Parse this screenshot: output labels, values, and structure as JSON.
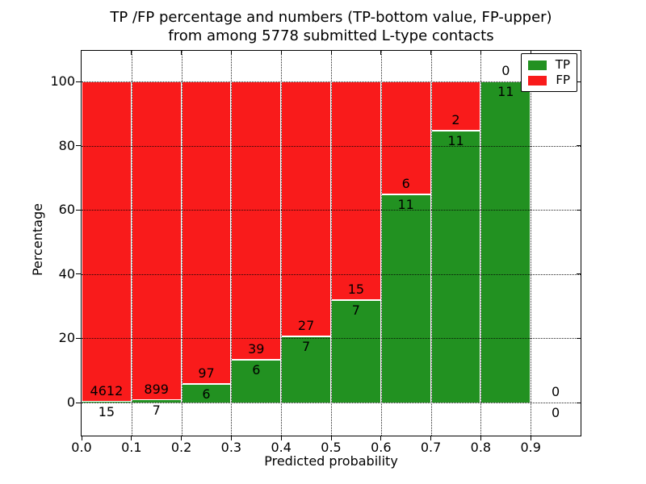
{
  "figure": {
    "title_line1": "TP /FP percentage and numbers (TP-bottom value, FP-upper)",
    "title_line2": "from among 5778 submitted L-type contacts",
    "background": "#ffffff"
  },
  "axes": {
    "xlabel": "Predicted probability",
    "ylabel": "Percentage",
    "x_tick_labels": [
      "0.0",
      "0.1",
      "0.2",
      "0.3",
      "0.4",
      "0.5",
      "0.6",
      "0.7",
      "0.8",
      "0.9"
    ],
    "y_tick_labels": [
      "0",
      "20",
      "40",
      "60",
      "80",
      "100"
    ]
  },
  "legend": {
    "items": [
      {
        "label": "TP",
        "color": "#229121"
      },
      {
        "label": "FP",
        "color": "#f91b1b"
      }
    ]
  },
  "chart_data": {
    "type": "bar",
    "stacked": true,
    "title": "TP /FP percentage and numbers (TP-bottom value, FP-upper) from among 5778 submitted L-type contacts",
    "xlabel": "Predicted probability",
    "ylabel": "Percentage",
    "xlim": [
      0.0,
      1.0
    ],
    "ylim": [
      -10.3,
      109.6
    ],
    "grid": true,
    "legend_position": "upper right",
    "total_submitted": 5778,
    "bin_width": 0.1,
    "categories": [
      "0.0-0.1",
      "0.1-0.2",
      "0.2-0.3",
      "0.3-0.4",
      "0.4-0.5",
      "0.5-0.6",
      "0.6-0.7",
      "0.7-0.8",
      "0.8-0.9",
      "0.9-1.0"
    ],
    "bin_edges": [
      0.0,
      0.1,
      0.2,
      0.3,
      0.4,
      0.5,
      0.6,
      0.7,
      0.8,
      0.9,
      1.0
    ],
    "series": [
      {
        "name": "TP",
        "color": "#229121",
        "counts": [
          15,
          7,
          6,
          6,
          7,
          7,
          11,
          11,
          11,
          0
        ],
        "pct": [
          0.32,
          0.77,
          5.83,
          13.33,
          20.59,
          31.82,
          64.71,
          84.62,
          100,
          0
        ]
      },
      {
        "name": "FP",
        "color": "#f91b1b",
        "counts": [
          4612,
          899,
          97,
          39,
          27,
          15,
          6,
          2,
          0,
          0
        ],
        "pct": [
          99.68,
          99.23,
          94.17,
          86.67,
          79.41,
          68.18,
          35.29,
          15.38,
          0,
          0
        ]
      }
    ]
  }
}
